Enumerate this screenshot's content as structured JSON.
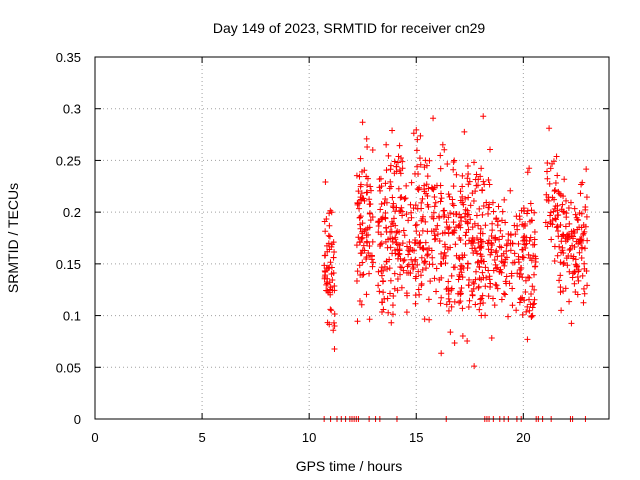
{
  "chart_data": {
    "type": "scatter",
    "title": "Day 149 of 2023, SRMTID for receiver cn29",
    "xlabel": "GPS time / hours",
    "ylabel": "SRMTID / TECUs",
    "xlim": [
      0,
      24
    ],
    "ylim": [
      0,
      0.35
    ],
    "xticks": [
      0,
      5,
      10,
      15,
      20
    ],
    "xtick_labels": [
      "0",
      "5",
      "10",
      "15",
      "20"
    ],
    "yticks": [
      0,
      0.05,
      0.1,
      0.15,
      0.2,
      0.25,
      0.3,
      0.35
    ],
    "ytick_labels": [
      "0",
      "0.05",
      "0.1",
      "0.15",
      "0.2",
      "0.25",
      "0.3",
      "0.35"
    ],
    "grid": true,
    "marker": "+",
    "series": [
      {
        "name": "SRMTID",
        "color": "#ff0000",
        "generator": {
          "description": "Dense cloud of ~1000 SRMTID points between about 10.7 h and 23 h, mostly 0.05–0.30 TECU, with zero-valued points along the x-axis",
          "x_range": [
            10.7,
            23.0
          ],
          "clusters": [
            {
              "x": [
                10.7,
                11.2
              ],
              "y": [
                0.05,
                0.24
              ],
              "n": 60
            },
            {
              "x": [
                12.2,
                13.0
              ],
              "y": [
                0.07,
                0.3
              ],
              "n": 90
            },
            {
              "x": [
                13.2,
                16.0
              ],
              "y": [
                0.06,
                0.31
              ],
              "n": 280
            },
            {
              "x": [
                16.0,
                18.5
              ],
              "y": [
                0.04,
                0.3
              ],
              "n": 260
            },
            {
              "x": [
                18.5,
                19.8
              ],
              "y": [
                0.07,
                0.24
              ],
              "n": 90
            },
            {
              "x": [
                19.8,
                20.6
              ],
              "y": [
                0.06,
                0.26
              ],
              "n": 80
            },
            {
              "x": [
                21.0,
                21.6
              ],
              "y": [
                0.13,
                0.3
              ],
              "n": 40
            },
            {
              "x": [
                21.6,
                23.0
              ],
              "y": [
                0.08,
                0.26
              ],
              "n": 130
            }
          ],
          "zero_points_x": [
            10.7,
            11.0,
            11.3,
            11.5,
            11.7,
            11.9,
            12.0,
            12.1,
            12.2,
            12.3,
            12.8,
            13.1,
            13.3,
            14.1,
            16.4,
            18.2,
            18.3,
            18.4,
            18.6,
            18.9,
            19.1,
            19.3,
            19.7,
            19.9,
            20.6,
            20.7,
            20.9,
            21.3,
            22.2,
            22.3,
            22.9
          ]
        }
      }
    ]
  }
}
